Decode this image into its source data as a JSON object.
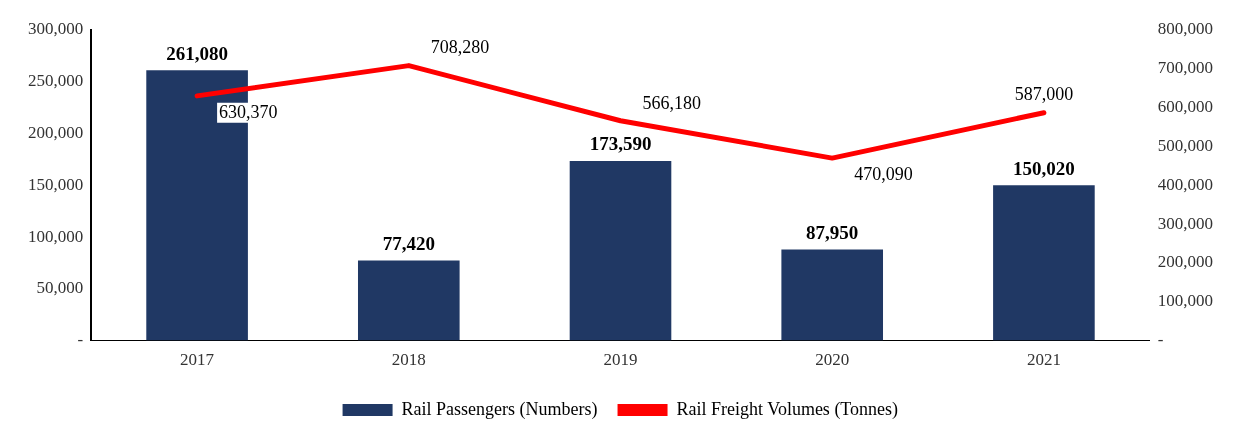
{
  "chart_data": {
    "type": "bar",
    "categories": [
      "2017",
      "2018",
      "2019",
      "2020",
      "2021"
    ],
    "series": [
      {
        "name": "Rail Passengers (Numbers)",
        "color": "#203864",
        "values": [
          261080,
          77420,
          173590,
          87950,
          150020
        ],
        "value_labels": [
          "261,080",
          "77,420",
          "173,590",
          "87,950",
          "150,020"
        ]
      },
      {
        "name": "Rail Freight Volumes (Tonnes)",
        "type": "line",
        "axis": "y2",
        "color": "#ff0000",
        "values": [
          630370,
          708280,
          566180,
          470090,
          587000
        ],
        "value_labels": [
          "630,370",
          "708,280",
          "566,180",
          "470,090",
          "587,000"
        ]
      }
    ],
    "ylim": [
      0,
      300000
    ],
    "yticks": [
      {
        "value": 0,
        "label": "-"
      },
      {
        "value": 50000,
        "label": "50,000"
      },
      {
        "value": 100000,
        "label": "100,000"
      },
      {
        "value": 150000,
        "label": "150,000"
      },
      {
        "value": 200000,
        "label": "200,000"
      },
      {
        "value": 250000,
        "label": "250,000"
      },
      {
        "value": 300000,
        "label": "300,000"
      }
    ],
    "y2lim": [
      0,
      800000
    ],
    "y2ticks": [
      {
        "value": 0,
        "label": "-"
      },
      {
        "value": 100000,
        "label": "100,000"
      },
      {
        "value": 200000,
        "label": "200,000"
      },
      {
        "value": 300000,
        "label": "300,000"
      },
      {
        "value": 400000,
        "label": "400,000"
      },
      {
        "value": 500000,
        "label": "500,000"
      },
      {
        "value": 600000,
        "label": "600,000"
      },
      {
        "value": 700000,
        "label": "700,000"
      },
      {
        "value": 800000,
        "label": "800,000"
      }
    ],
    "grid": false,
    "legend": "bottom",
    "marker": "none",
    "line_style": "solid"
  }
}
